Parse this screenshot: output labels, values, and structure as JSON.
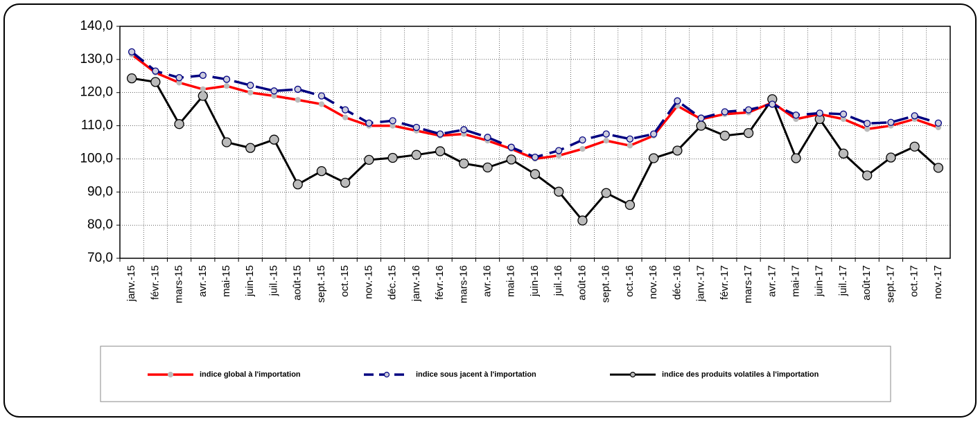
{
  "chart_data": {
    "type": "line",
    "categories": [
      "janv.-15",
      "févr.-15",
      "mars-15",
      "avr.-15",
      "mai-15",
      "juin-15",
      "juil.-15",
      "août-15",
      "sept.-15",
      "oct.-15",
      "nov.-15",
      "déc.-15",
      "janv.-16",
      "févr.-16",
      "mars-16",
      "avr.-16",
      "mai-16",
      "juin-16",
      "juil.-16",
      "août-16",
      "sept.-16",
      "oct.-16",
      "nov.-16",
      "déc.-16",
      "janv.-17",
      "févr.-17",
      "mars-17",
      "avr.-17",
      "mai-17",
      "juin-17",
      "juil.-17",
      "août-17",
      "sept.-17",
      "oct.-17",
      "nov.-17"
    ],
    "series": [
      {
        "name": "indice global à l'importation",
        "color": "#ff0000",
        "values": [
          131.5,
          126,
          123,
          121,
          122,
          120,
          119,
          117.8,
          116.5,
          112.5,
          110,
          110,
          108.5,
          107,
          107.5,
          105.5,
          103,
          100,
          101,
          103,
          105.5,
          104,
          107,
          116,
          112,
          113.5,
          114,
          117,
          112,
          113.5,
          112,
          109,
          110,
          112,
          109.5
        ]
      },
      {
        "name": "indice sous jacent à l'importation",
        "color": "#000080",
        "values": [
          132.3,
          126.5,
          124.5,
          125.2,
          124,
          122.2,
          120.5,
          121,
          119,
          114.8,
          110.8,
          111.5,
          109.5,
          107.5,
          108.8,
          106.5,
          103.5,
          100.5,
          102.5,
          105.7,
          107.5,
          106,
          107.5,
          117.5,
          112.3,
          114.2,
          114.8,
          116.5,
          113.2,
          113.8,
          113.5,
          110.7,
          111,
          113,
          110.8
        ]
      },
      {
        "name": "indice des produits volatiles à l'importation",
        "color": "#000000",
        "values": [
          124.3,
          123.2,
          110.5,
          119,
          105,
          103.3,
          105.8,
          92.3,
          96.3,
          92.8,
          99.7,
          100.3,
          101.2,
          102.3,
          98.6,
          97.4,
          99.8,
          95.4,
          90.1,
          81.4,
          89.7,
          86.1,
          100.2,
          102.5,
          110,
          107,
          107.8,
          118,
          100.2,
          112,
          101.6,
          95,
          100.4,
          103.7,
          97.3
        ]
      }
    ],
    "ylim": [
      70,
      140
    ],
    "yticks": [
      {
        "value": 70,
        "label": "70,0"
      },
      {
        "value": 80,
        "label": "80,0"
      },
      {
        "value": 90,
        "label": "90,0"
      },
      {
        "value": 100,
        "label": "100,0"
      },
      {
        "value": 110,
        "label": "110,0"
      },
      {
        "value": 120,
        "label": "120,0"
      },
      {
        "value": 130,
        "label": "130,0"
      },
      {
        "value": 140,
        "label": "140,0"
      }
    ],
    "grid": true
  }
}
